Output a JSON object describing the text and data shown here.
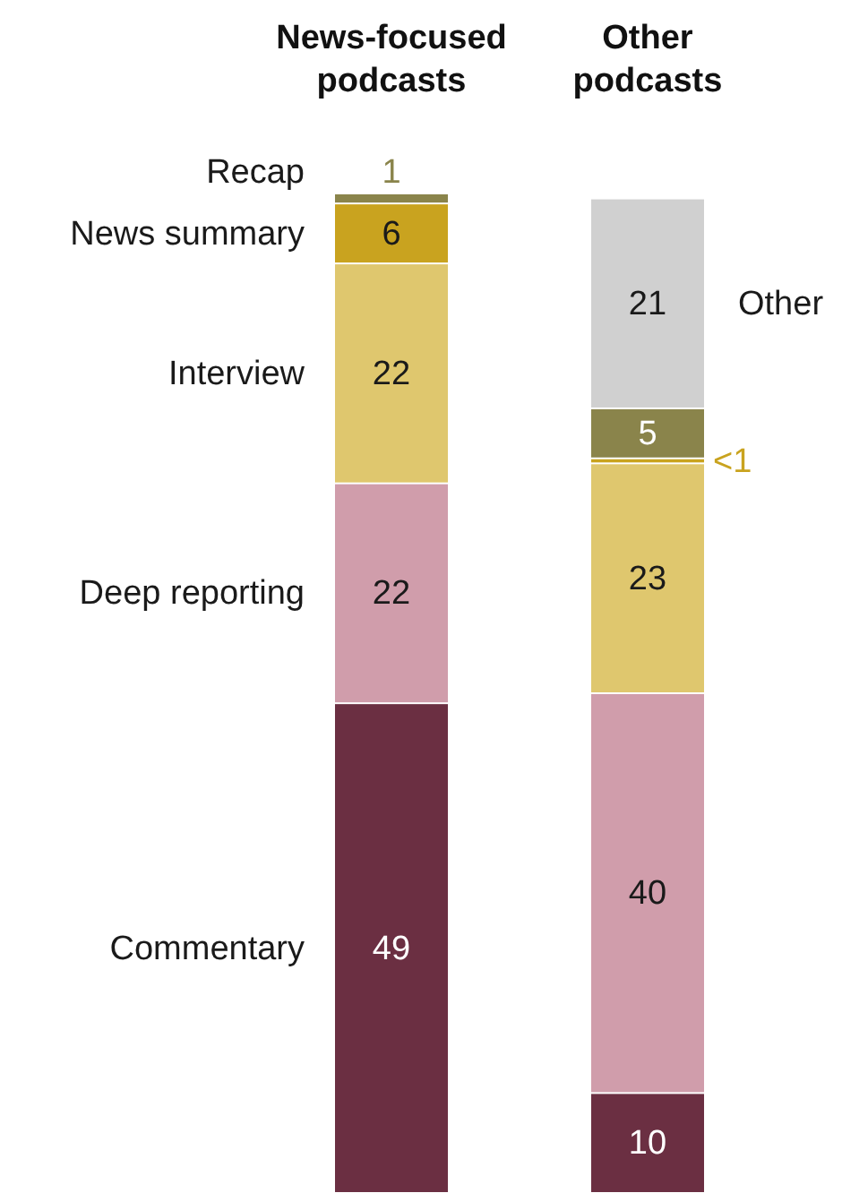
{
  "chart_data": {
    "type": "bar",
    "stacked": true,
    "categories": [
      "News-focused podcasts",
      "Other podcasts"
    ],
    "series": [
      {
        "name": "Commentary",
        "color": "#6b2f42",
        "values": [
          49,
          10
        ],
        "value_labels": [
          "49",
          "10"
        ]
      },
      {
        "name": "Deep reporting",
        "color": "#d09dab",
        "values": [
          22,
          40
        ],
        "value_labels": [
          "22",
          "40"
        ]
      },
      {
        "name": "Interview",
        "color": "#dfc76e",
        "values": [
          22,
          23
        ],
        "value_labels": [
          "22",
          "23"
        ]
      },
      {
        "name": "News summary",
        "color": "#c9a31f",
        "values": [
          6,
          0.5
        ],
        "value_labels": [
          "6",
          "<1"
        ]
      },
      {
        "name": "Recap",
        "color": "#8a844b",
        "values": [
          1,
          5
        ],
        "value_labels": [
          "1",
          "5"
        ]
      },
      {
        "name": "Other",
        "color": "#d0d0d0",
        "values": [
          null,
          21
        ],
        "value_labels": [
          null,
          "21"
        ]
      }
    ]
  }
}
